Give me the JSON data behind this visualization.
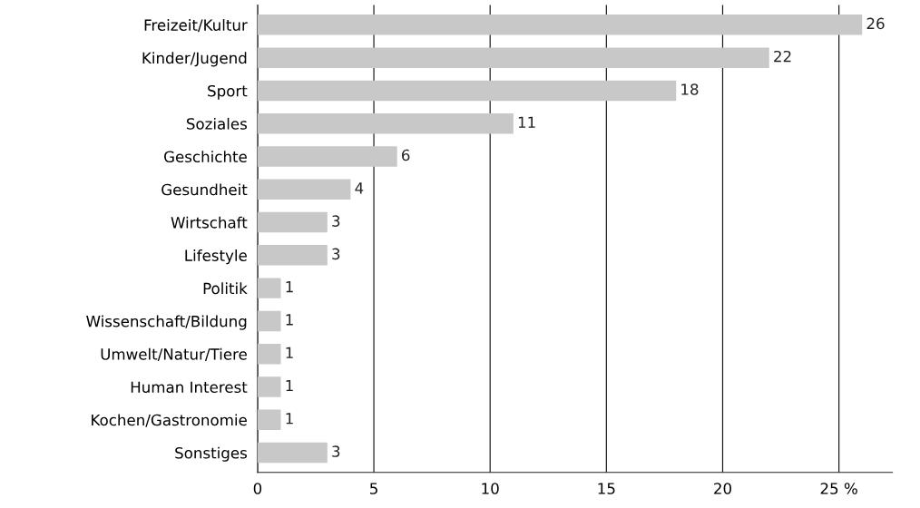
{
  "chart_data": {
    "type": "bar",
    "orientation": "horizontal",
    "categories": [
      "Freizeit/Kultur",
      "Kinder/Jugend",
      "Sport",
      "Soziales",
      "Geschichte",
      "Gesundheit",
      "Wirtschaft",
      "Lifestyle",
      "Politik",
      "Wissenschaft/Bildung",
      "Umwelt/Natur/Tiere",
      "Human Interest",
      "Kochen/Gastronomie",
      "Sonstiges"
    ],
    "values": [
      26,
      22,
      18,
      11,
      6,
      4,
      3,
      3,
      1,
      1,
      1,
      1,
      1,
      3
    ],
    "color": "#c8c8c8",
    "xlim": [
      0,
      27.3
    ],
    "xticks": [
      0,
      5,
      10,
      15,
      20,
      {
        "value": 25,
        "label": "25 %"
      }
    ],
    "grid": "x",
    "data_labels": true
  }
}
